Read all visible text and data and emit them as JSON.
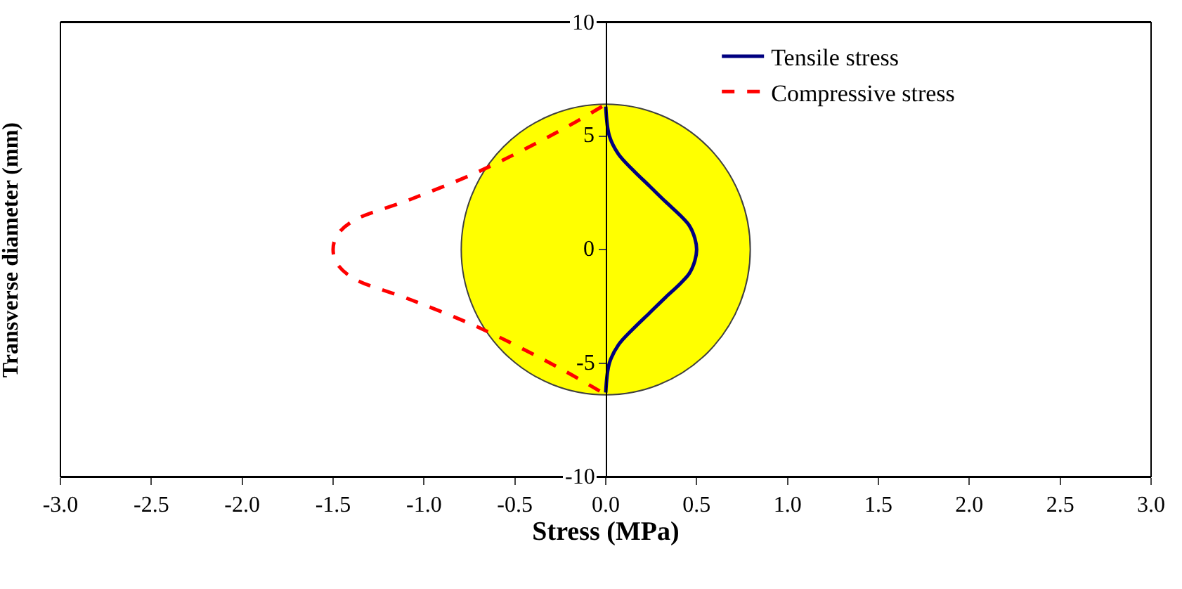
{
  "chart_data": {
    "type": "line",
    "xlabel": "Stress (MPa)",
    "ylabel": "Transverse diameter (mm)",
    "xlim": [
      -3.0,
      3.0
    ],
    "xticks": [
      {
        "value": -3,
        "label": "-3.0"
      },
      {
        "value": -2.5,
        "label": "-2.5"
      },
      {
        "value": -2,
        "label": "-2.0"
      },
      {
        "value": -1.5,
        "label": "-1.5"
      },
      {
        "value": -1,
        "label": "-1.0"
      },
      {
        "value": -0.5,
        "label": "-0.5"
      },
      {
        "value": 0,
        "label": "0.0"
      },
      {
        "value": 0.5,
        "label": "0.5"
      },
      {
        "value": 1,
        "label": "1.0"
      },
      {
        "value": 1.5,
        "label": "1.5"
      },
      {
        "value": 2,
        "label": "2.0"
      },
      {
        "value": 2.5,
        "label": "2.5"
      },
      {
        "value": 3,
        "label": "3.0"
      }
    ],
    "ylim": [
      -10,
      10
    ],
    "yticks": [
      -10,
      -5,
      0,
      5,
      10
    ],
    "grid": false,
    "legend": "top right",
    "marker": "none",
    "series": [
      {
        "name": "Tensile stress",
        "color": "#000080",
        "line_style": "solid",
        "x": [
          0,
          0.02,
          0.07,
          0.15,
          0.24,
          0.33,
          0.41,
          0.46,
          0.49,
          0.5,
          0.49,
          0.46,
          0.41,
          0.33,
          0.24,
          0.15,
          0.07,
          0.02,
          0
        ],
        "values": [
          6.3,
          5.0,
          4.2,
          3.5,
          2.8,
          2.1,
          1.5,
          1.05,
          0.5,
          0,
          -0.5,
          -1.05,
          -1.5,
          -2.1,
          -2.8,
          -3.5,
          -4.2,
          -5.0,
          -6.3
        ]
      },
      {
        "name": "Compressive stress",
        "color": "#ff0000",
        "line_style": "dashed",
        "x": [
          -0.02,
          -0.26,
          -0.7,
          -1.08,
          -1.39,
          -1.48,
          -1.5,
          -1.48,
          -1.39,
          -1.08,
          -0.7,
          -0.26,
          -0.02
        ],
        "values": [
          6.3,
          5.2,
          3.43,
          2.19,
          1.26,
          0.6,
          0,
          -0.6,
          -1.26,
          -2.19,
          -3.43,
          -5.2,
          -6.3
        ]
      }
    ]
  }
}
